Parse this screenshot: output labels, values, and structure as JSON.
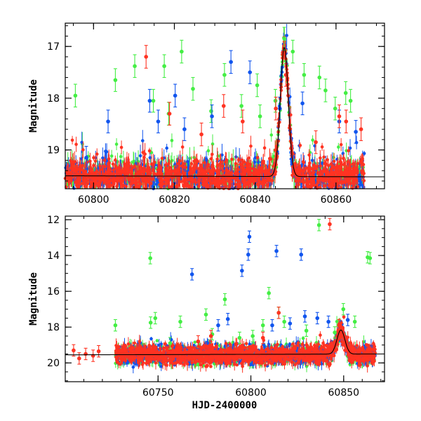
{
  "colors": {
    "green": "#44ee44",
    "blue": "#1155ee",
    "red": "#ff3322",
    "model": "#000000"
  },
  "chart_data": [
    {
      "type": "scatter",
      "panel": "top",
      "xlabel": "",
      "ylabel": "Magnitude",
      "xlim": [
        60793,
        60872
      ],
      "ylim": [
        19.75,
        16.55
      ],
      "y_inverted": true,
      "x_ticks": [
        60800,
        60820,
        60840,
        60860
      ],
      "y_ticks": [
        17,
        18,
        19
      ],
      "y_tick_labels": [
        "17",
        "18",
        "19"
      ],
      "baseline": [
        [
          60793,
          19.5
        ],
        [
          60872,
          19.52
        ]
      ],
      "event_model": {
        "peak_x": 60847.2,
        "peak_mag": 17.0,
        "base_mag": 19.5,
        "width": 1.4
      },
      "data_range": [
        60793,
        60867
      ],
      "series": [
        {
          "color": "green",
          "x": [
            60795.5,
            60805.4,
            60810.2,
            60814.8,
            60817.5,
            60818.6,
            60821.8,
            60824.6,
            60829.1,
            60832.4,
            60836.6,
            60840.5,
            60841.2,
            60845.0,
            60847.2,
            60849.3,
            60852.1,
            60855.9,
            60857.4,
            60859.8,
            60862.4,
            60863.6
          ],
          "y": [
            17.95,
            17.65,
            17.38,
            18.05,
            17.38,
            18.3,
            17.1,
            17.82,
            18.25,
            17.55,
            18.15,
            17.75,
            18.35,
            18.05,
            16.85,
            17.1,
            17.55,
            17.6,
            17.85,
            18.2,
            17.9,
            18.05
          ]
        },
        {
          "color": "blue",
          "x": [
            60798.2,
            60803.6,
            60813.9,
            60816.0,
            60820.2,
            60822.5,
            60829.3,
            60834.0,
            60838.7,
            60846.1,
            60851.7,
            60860.8,
            60864.9
          ],
          "y": [
            19.15,
            18.45,
            18.05,
            18.45,
            17.95,
            18.6,
            18.35,
            17.3,
            17.5,
            18.2,
            18.1,
            18.45,
            18.65
          ]
        },
        {
          "color": "red",
          "x": [
            60813.0,
            60818.8,
            60826.7,
            60832.2,
            60836.9,
            60845.1,
            60847.6,
            60855.0,
            60860.8,
            60862.5,
            60866.2
          ],
          "y": [
            17.2,
            18.3,
            18.7,
            18.15,
            18.45,
            18.2,
            17.55,
            18.85,
            18.35,
            18.45,
            18.6
          ]
        }
      ]
    },
    {
      "type": "scatter",
      "panel": "bottom",
      "xlabel": "HJD-2400000",
      "ylabel": "Magnitude",
      "xlim": [
        60700,
        60872
      ],
      "ylim": [
        21.05,
        11.8
      ],
      "y_inverted": true,
      "x_ticks": [
        60750,
        60800,
        60850
      ],
      "y_ticks": [
        12,
        14,
        16,
        18,
        20
      ],
      "y_tick_labels": [
        "12",
        "14",
        "16",
        "18",
        "20"
      ],
      "baseline": [
        [
          60700,
          19.55
        ],
        [
          60872,
          19.5
        ]
      ],
      "event_model": {
        "peak_x": 60848.5,
        "peak_mag": 18.2,
        "base_mag": 19.55,
        "width": 3.0
      },
      "data_range": [
        60727,
        60867
      ],
      "series": [
        {
          "color": "green",
          "x": [
            60727.0,
            60745.8,
            60746.0,
            60748.5,
            60756.5,
            60762.0,
            60775.8,
            60779.2,
            60786.0,
            60793.9,
            60801.0,
            60806.5,
            60809.7,
            60815.0,
            60818.0,
            60829.9,
            60836.7,
            60845.2,
            60849.8,
            60856.0,
            60862.9,
            60864.2
          ],
          "y": [
            17.9,
            14.15,
            17.75,
            17.5,
            18.9,
            17.7,
            17.3,
            18.4,
            16.45,
            18.6,
            18.5,
            17.9,
            16.1,
            17.2,
            17.7,
            18.2,
            12.3,
            18.3,
            17.0,
            17.7,
            14.1,
            14.15
          ]
        },
        {
          "color": "blue",
          "x": [
            60768.3,
            60782.4,
            60787.6,
            60795.2,
            60798.6,
            60799.2,
            60811.5,
            60813.8,
            60821.1,
            60827.1,
            60829.1,
            60835.8,
            60841.8,
            60852.2
          ],
          "y": [
            15.05,
            17.9,
            17.55,
            14.85,
            13.95,
            12.95,
            17.9,
            13.75,
            17.8,
            13.95,
            17.4,
            17.5,
            17.7,
            17.6
          ]
        },
        {
          "color": "red",
          "x": [
            60704.5,
            60707.5,
            60711.0,
            60715.0,
            60718.0,
            60728.5,
            60771.6,
            60778.5,
            60806.5,
            60815.0,
            60842.5,
            60847.5
          ],
          "y": [
            19.3,
            19.75,
            19.5,
            19.6,
            19.35,
            19.45,
            18.8,
            18.5,
            18.6,
            17.2,
            12.25,
            17.9
          ]
        }
      ]
    }
  ]
}
